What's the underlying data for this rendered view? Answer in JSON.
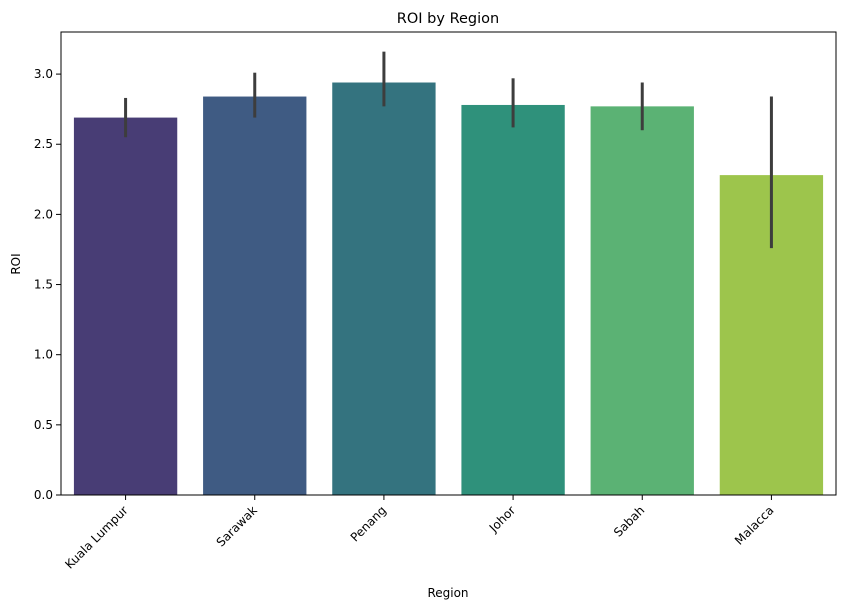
{
  "chart_data": {
    "type": "bar",
    "title": "ROI by Region",
    "xlabel": "Region",
    "ylabel": "ROI",
    "categories": [
      "Kuala Lumpur",
      "Sarawak",
      "Penang",
      "Johor",
      "Sabah",
      "Malacca"
    ],
    "values": [
      2.69,
      2.84,
      2.94,
      2.78,
      2.77,
      2.28
    ],
    "error_bars": [
      {
        "low": 2.55,
        "high": 2.83
      },
      {
        "low": 2.69,
        "high": 3.01
      },
      {
        "low": 2.77,
        "high": 3.16
      },
      {
        "low": 2.62,
        "high": 2.97
      },
      {
        "low": 2.6,
        "high": 2.94
      },
      {
        "low": 1.76,
        "high": 2.84
      }
    ],
    "colors": [
      "#483D75",
      "#3F5B83",
      "#34737F",
      "#2F917B",
      "#5BB274",
      "#9DC54C"
    ],
    "error_bar_color": "#3d3d3d",
    "ylim": [
      0,
      3.3
    ],
    "yticks": [
      0.0,
      0.5,
      1.0,
      1.5,
      2.0,
      2.5,
      3.0
    ],
    "ytick_labels": [
      "0.0",
      "0.5",
      "1.0",
      "1.5",
      "2.0",
      "2.5",
      "3.0"
    ],
    "grid": false,
    "xtick_rotation_deg": 45
  }
}
